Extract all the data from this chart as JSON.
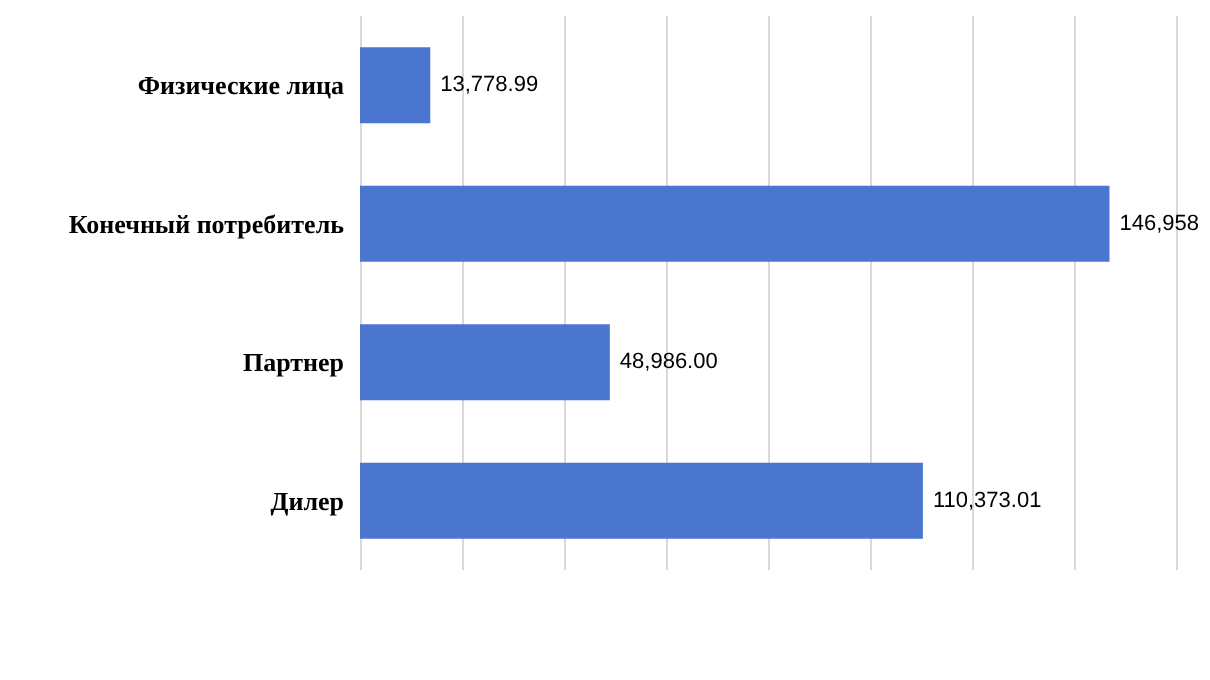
{
  "chart_data": {
    "type": "bar",
    "orientation": "horizontal",
    "categories": [
      "Физические лица",
      "Конечный потребитель",
      "Партнер",
      "Дилер"
    ],
    "values": [
      13778.99,
      146958,
      48986.0,
      110373.01
    ],
    "value_labels": [
      "13,778.99",
      "146,958",
      "48,986.00",
      "110,373.01"
    ],
    "color": "#4a76d0",
    "xlim": [
      0,
      160000
    ],
    "xticks": [
      {
        "value": 0,
        "label": null
      },
      {
        "value": 20000,
        "label": null
      },
      {
        "value": 40000,
        "label": null
      },
      {
        "value": 60000,
        "label": null
      },
      {
        "value": 80000,
        "label": null
      },
      {
        "value": 100000,
        "label": null
      },
      {
        "value": 120000,
        "label": null
      },
      {
        "value": 140000,
        "label": null
      },
      {
        "value": 160000,
        "label": null
      }
    ],
    "grid": "x",
    "tick_labels": "y"
  }
}
